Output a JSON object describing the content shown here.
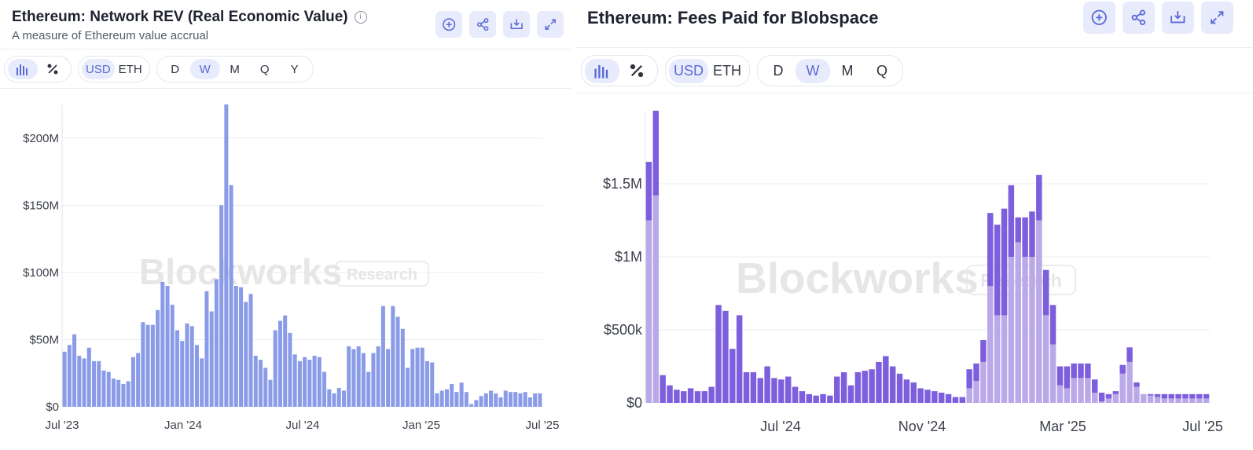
{
  "panels": [
    {
      "title": "Ethereum: Network REV (Real Economic Value)",
      "subtitle": "A measure of Ethereum value accrual",
      "actions": [
        "add-icon",
        "share-icon",
        "download-icon",
        "expand-icon"
      ],
      "toolbar": {
        "chart_type": [
          "bar-chart-icon",
          "percent-icon"
        ],
        "currency": [
          "USD",
          "ETH"
        ],
        "currency_selected": "USD",
        "periods": [
          "D",
          "W",
          "M",
          "Q",
          "Y"
        ],
        "period_selected": "W"
      },
      "watermark": {
        "brand": "Blockworks",
        "tag": "Research"
      }
    },
    {
      "title": "Ethereum: Fees Paid for Blobspace",
      "actions": [
        "add-icon",
        "share-icon",
        "download-icon",
        "expand-icon"
      ],
      "toolbar": {
        "chart_type": [
          "bar-chart-icon",
          "percent-icon"
        ],
        "currency": [
          "USD",
          "ETH"
        ],
        "currency_selected": "USD",
        "periods": [
          "D",
          "W",
          "M",
          "Q"
        ],
        "period_selected": "W"
      },
      "watermark": {
        "brand": "Blockworks",
        "tag": "Research"
      }
    }
  ],
  "colors": {
    "rev_bar": "#8a9be8",
    "blob_dark": "#7d5fde",
    "blob_light": "#b9a9e8",
    "accent": "#5b6ad6"
  },
  "chart_data": [
    {
      "type": "bar",
      "x_start": "2023-07",
      "x_end": "2025-07",
      "yticks": [
        0,
        50,
        100,
        150,
        200
      ],
      "ytick_labels": [
        "$0",
        "$50M",
        "$100M",
        "$150M",
        "$200M"
      ],
      "xtick_labels": [
        "Jul '23",
        "Jan '24",
        "Jul '24",
        "Jan '25",
        "Jul '25"
      ],
      "unit": "USD millions",
      "ylim": [
        0,
        225
      ],
      "grid": true,
      "values": [
        41,
        46,
        54,
        38,
        36,
        44,
        34,
        34,
        27,
        26,
        21,
        20,
        17,
        19,
        37,
        40,
        63,
        61,
        61,
        72,
        93,
        90,
        76,
        57,
        49,
        62,
        60,
        46,
        36,
        86,
        71,
        95,
        150,
        225,
        165,
        90,
        89,
        78,
        84,
        38,
        35,
        29,
        20,
        57,
        64,
        68,
        55,
        39,
        34,
        37,
        35,
        38,
        37,
        26,
        13,
        10,
        14,
        12,
        45,
        43,
        45,
        40,
        26,
        40,
        45,
        75,
        43,
        75,
        67,
        58,
        29,
        43,
        44,
        44,
        34,
        33,
        10,
        12,
        13,
        17,
        11,
        18,
        11,
        2,
        5,
        8,
        10,
        12,
        10,
        7,
        12,
        11,
        11,
        10,
        11,
        7,
        10,
        10
      ]
    },
    {
      "type": "bar",
      "stacked": true,
      "x_start": "2024-03",
      "x_end": "2025-07",
      "yticks": [
        0,
        500,
        1000,
        1500
      ],
      "ytick_labels": [
        "$0",
        "$500k",
        "$1M",
        "$1.5M"
      ],
      "xtick_labels": [
        "Jul '24",
        "Nov '24",
        "Mar '25",
        "Jul '25"
      ],
      "unit": "USD thousands",
      "ylim": [
        0,
        2000
      ],
      "grid": true,
      "series": [
        {
          "values": [
            1250,
            1420,
            0,
            0,
            0,
            0,
            0,
            0,
            0,
            0,
            0,
            0,
            0,
            0,
            0,
            0,
            0,
            0,
            0,
            0,
            0,
            0,
            0,
            0,
            0,
            0,
            0,
            0,
            0,
            0,
            0,
            0,
            0,
            0,
            0,
            0,
            0,
            0,
            0,
            0,
            0,
            0,
            0,
            0,
            0,
            0,
            100,
            150,
            280,
            800,
            600,
            600,
            1000,
            1100,
            1000,
            1000,
            1250,
            600,
            400,
            120,
            100,
            170,
            170,
            170,
            70,
            10,
            30,
            60,
            200,
            280,
            110,
            60,
            50,
            40,
            30,
            30,
            30,
            30,
            30,
            30,
            30
          ]
        },
        {
          "values": [
            400,
            580,
            190,
            120,
            90,
            80,
            100,
            80,
            80,
            110,
            670,
            630,
            370,
            600,
            210,
            210,
            170,
            250,
            170,
            160,
            180,
            110,
            80,
            60,
            50,
            60,
            50,
            180,
            210,
            120,
            210,
            220,
            230,
            280,
            320,
            250,
            200,
            160,
            140,
            100,
            90,
            80,
            70,
            60,
            40,
            40,
            130,
            120,
            150,
            500,
            620,
            730,
            490,
            170,
            270,
            310,
            310,
            310,
            270,
            130,
            150,
            100,
            100,
            100,
            90,
            60,
            30,
            20,
            60,
            100,
            30,
            0,
            10,
            20,
            30,
            30,
            30,
            30,
            30,
            30,
            30
          ]
        }
      ]
    }
  ]
}
